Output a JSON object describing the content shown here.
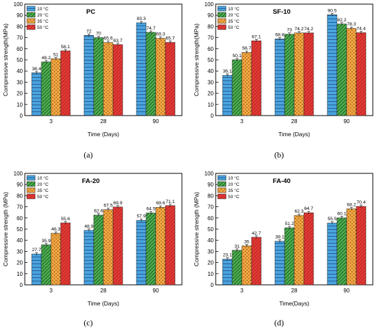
{
  "legend_colors": {
    "10 °C": "#4aa3df",
    "20 °C": "#4caf50",
    "35 °C": "#f4a742",
    "50 °C": "#e53935"
  },
  "chart_data": [
    {
      "type": "bar",
      "title": "PC",
      "xlabel": "Time (Days)",
      "ylabel": "Compressive strength(MPa)",
      "ylim": [
        0,
        100
      ],
      "yticks": [
        0,
        10,
        20,
        30,
        40,
        50,
        60,
        70,
        80,
        90,
        100
      ],
      "categories": [
        "3",
        "28",
        "90"
      ],
      "legend_position": "top-left",
      "series": [
        {
          "name": "10 °C",
          "values": [
            38.4,
            72,
            83.3
          ],
          "labels": [
            "38.4",
            "72",
            "83.3"
          ]
        },
        {
          "name": "20 °C",
          "values": [
            48.2,
            70,
            74.7
          ],
          "labels": [
            "48.2",
            "70",
            "74.7"
          ]
        },
        {
          "name": "35 °C",
          "values": [
            51,
            65.6,
            69.3
          ],
          "labels": [
            "51",
            "65.6",
            "69.3"
          ]
        },
        {
          "name": "50 °C",
          "values": [
            58.1,
            63.7,
            65.7
          ],
          "labels": [
            "58.1",
            "63.7",
            "65.7"
          ]
        }
      ],
      "caption": "(a)"
    },
    {
      "type": "bar",
      "title": "SF-10",
      "xlabel": "Time (Days)",
      "ylabel": "Compressive strength(MPa)",
      "ylim": [
        0,
        100
      ],
      "yticks": [
        0,
        10,
        20,
        30,
        40,
        50,
        60,
        70,
        80,
        90,
        100
      ],
      "categories": [
        "3",
        "28",
        "90"
      ],
      "legend_position": "top-left",
      "series": [
        {
          "name": "10 °C",
          "values": [
            36.1,
            68.8,
            90.5
          ],
          "labels": [
            "36.1",
            "68.8",
            "90.5"
          ]
        },
        {
          "name": "20 °C",
          "values": [
            50.1,
            73,
            82.2
          ],
          "labels": [
            "50.1",
            "73",
            "82.2"
          ]
        },
        {
          "name": "35 °C",
          "values": [
            56.7,
            74.2,
            78.3
          ],
          "labels": [
            "56.7",
            "74.2",
            "78.3"
          ]
        },
        {
          "name": "50 °C",
          "values": [
            67.1,
            74.2,
            74.4
          ],
          "labels": [
            "67.1",
            "74.2",
            "74.4"
          ]
        }
      ],
      "caption": "(b)"
    },
    {
      "type": "bar",
      "title": "FA-20",
      "xlabel": "Time (Days)",
      "ylabel": "Compressive strength (MPa)",
      "ylim": [
        0,
        100
      ],
      "yticks": [
        0,
        10,
        20,
        30,
        40,
        50,
        60,
        70,
        80,
        90,
        100
      ],
      "categories": [
        "3",
        "28",
        "90"
      ],
      "legend_position": "top-left",
      "series": [
        {
          "name": "10 °C",
          "values": [
            27.7,
            48.9,
            57.9
          ],
          "labels": [
            "27.7",
            "48.9",
            "57.9"
          ]
        },
        {
          "name": "20 °C",
          "values": [
            35.9,
            62.6,
            64.5
          ],
          "labels": [
            "35.9",
            "62.6",
            "64.5"
          ]
        },
        {
          "name": "35 °C",
          "values": [
            46.3,
            67.5,
            69.6
          ],
          "labels": [
            "46.3",
            "67.5",
            "69.6"
          ]
        },
        {
          "name": "50 °C",
          "values": [
            55.6,
            69.9,
            71.1
          ],
          "labels": [
            "55.6",
            "69.9",
            "71.1"
          ]
        }
      ],
      "caption": "(c)"
    },
    {
      "type": "bar",
      "title": "FA-40",
      "xlabel": "Time(Days)",
      "ylabel": "Compressive strength (MPa)",
      "ylim": [
        0,
        100
      ],
      "yticks": [
        0,
        10,
        20,
        30,
        40,
        50,
        60,
        70,
        80,
        90,
        100
      ],
      "categories": [
        "3",
        "28",
        "90"
      ],
      "legend_position": "top-left",
      "series": [
        {
          "name": "10 °C",
          "values": [
            23.1,
            39.1,
            55.5
          ],
          "labels": [
            "23.1",
            "39.1",
            "55.5"
          ]
        },
        {
          "name": "20 °C",
          "values": [
            31,
            51.2,
            60.1
          ],
          "labels": [
            "31",
            "51.2",
            "60.1"
          ]
        },
        {
          "name": "35 °C",
          "values": [
            35,
            62.3,
            68.2
          ],
          "labels": [
            "35",
            "62.3",
            "68.2"
          ]
        },
        {
          "name": "50 °C",
          "values": [
            42.7,
            64.7,
            70.4
          ],
          "labels": [
            "42.7",
            "64.7",
            "70.4"
          ]
        }
      ],
      "caption": "(d)"
    }
  ]
}
